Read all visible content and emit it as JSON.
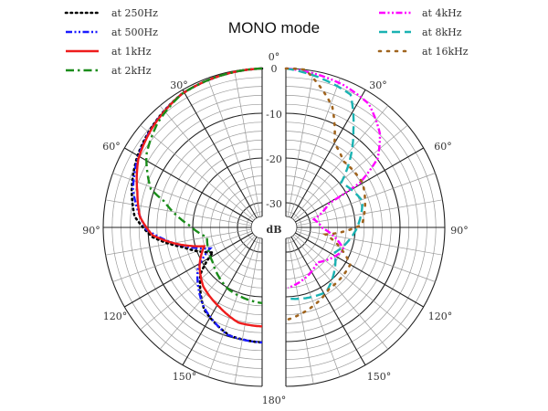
{
  "chart_data": {
    "type": "polar",
    "title": "MONO mode",
    "radial_unit": "dB",
    "radial_ticks": [
      0,
      -10,
      -20,
      -30
    ],
    "radial_range": [
      -35,
      0
    ],
    "angle_ticks": [
      "0°",
      "30°",
      "60°",
      "90°",
      "120°",
      "150°",
      "180°"
    ],
    "angle_labels": {
      "a0": "0°",
      "a30": "30°",
      "a60": "60°",
      "a90": "90°",
      "a120": "120°",
      "a150": "150°",
      "a180": "180°"
    },
    "db_labels": {
      "d0": "0",
      "d10": "-10",
      "d20": "-20",
      "d30": "-30",
      "unit": "dB"
    },
    "left_series": [
      {
        "name": "at 250Hz",
        "color": "#000000",
        "style": "dotted",
        "angles": [
          0,
          31,
          48,
          61,
          74,
          85,
          95,
          104,
          117,
          127,
          145,
          163,
          180
        ],
        "db": [
          0,
          -0.7,
          -2.2,
          -3.5,
          -5.2,
          -6.9,
          -10.9,
          -17.3,
          -23.2,
          -18.3,
          -13,
          -10.3,
          -9.8
        ]
      },
      {
        "name": "at 500Hz",
        "color": "#1a1aff",
        "style": "dash-dot-dot",
        "angles": [
          0,
          31,
          48,
          61,
          74,
          91,
          102,
          112,
          122,
          144,
          162,
          180
        ],
        "db": [
          0,
          -0.7,
          -2.3,
          -3.7,
          -5.5,
          -9.6,
          -16.7,
          -23,
          -18.6,
          -13.4,
          -10.3,
          -9.8
        ]
      },
      {
        "name": "at 1kHz",
        "color": "#ee1c1c",
        "style": "solid",
        "angles": [
          0,
          31,
          48,
          61,
          74,
          85,
          94,
          101,
          108,
          121,
          135,
          152,
          166,
          180
        ],
        "db": [
          0,
          -0.7,
          -2.4,
          -3.9,
          -6.5,
          -8.1,
          -10.9,
          -16.1,
          -21.9,
          -19.2,
          -16.9,
          -15.3,
          -13.6,
          -13.4
        ]
      },
      {
        "name": "at 2kHz",
        "color": "#1a8c1a",
        "style": "dash-dot",
        "angles": [
          0,
          31,
          45,
          58,
          71,
          75,
          88,
          100,
          125,
          151,
          180
        ],
        "db": [
          0,
          -0.7,
          -2.5,
          -5,
          -9.2,
          -12.8,
          -19.1,
          -23,
          -22,
          -19.8,
          -18.6
        ]
      }
    ],
    "right_series": [
      {
        "name": "at 4kHz",
        "color": "#ff00ff",
        "style": "dash-dot-dot",
        "angles": [
          0,
          22,
          34,
          45,
          53,
          59,
          61,
          74,
          91,
          111,
          138,
          178
        ],
        "db": [
          0,
          -1.2,
          -2.3,
          -5.8,
          -9.8,
          -16.3,
          -24.5,
          -29,
          -27.3,
          -21.6,
          -25,
          -22
        ]
      },
      {
        "name": "at 8kHz",
        "color": "#1ab2b2",
        "style": "dashed",
        "angles": [
          0,
          26,
          35,
          51,
          71,
          91,
          117,
          148,
          178
        ],
        "db": [
          0,
          -2.5,
          -9.2,
          -19.6,
          -17.4,
          -19.7,
          -23.2,
          -18.5,
          -19.6
        ]
      },
      {
        "name": "at 16kHz",
        "color": "#a0641e",
        "style": "dotted-sparse",
        "angles": [
          0,
          7,
          21,
          30,
          41,
          60,
          88,
          100,
          120,
          145,
          179
        ],
        "db": [
          0,
          0,
          -6.6,
          -13.8,
          -15.9,
          -15.7,
          -18.5,
          -26.5,
          -18.9,
          -18.7,
          -14.9
        ]
      }
    ],
    "legend_placement": "top-left and top-right"
  }
}
